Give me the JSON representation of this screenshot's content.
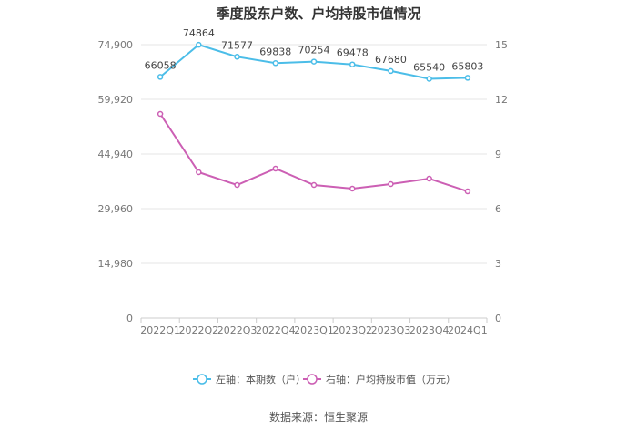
{
  "chart_data": {
    "type": "line",
    "title": "季度股东户数、户均持股市值情况",
    "categories": [
      "2022Q1",
      "2022Q2",
      "2022Q3",
      "2022Q4",
      "2023Q1",
      "2023Q2",
      "2023Q3",
      "2023Q4",
      "2024Q1"
    ],
    "left_axis": {
      "min": 0,
      "max": 74900,
      "ticks": [
        "0",
        "14,980",
        "29,960",
        "44,940",
        "59,920",
        "74,900"
      ]
    },
    "right_axis": {
      "min": 0,
      "max": 15,
      "ticks": [
        "0",
        "3",
        "6",
        "9",
        "12",
        "15"
      ]
    },
    "series": [
      {
        "name": "左轴：本期数（户）",
        "axis": "left",
        "color": "#4bbde8",
        "values": [
          66058,
          74864,
          71577,
          69838,
          70254,
          69478,
          67680,
          65540,
          65803
        ],
        "labels": [
          "66058",
          "74864",
          "71577",
          "69838",
          "70254",
          "69478",
          "67680",
          "65540",
          "65803"
        ]
      },
      {
        "name": "右轴：户均持股市值（万元）",
        "axis": "right",
        "color": "#cc5fb4",
        "values": [
          11.2,
          8.0,
          7.3,
          8.2,
          7.3,
          7.1,
          7.35,
          7.65,
          6.95
        ]
      }
    ],
    "grid": true,
    "legend_position": "bottom"
  },
  "footer": {
    "source": "数据来源：恒生聚源"
  }
}
